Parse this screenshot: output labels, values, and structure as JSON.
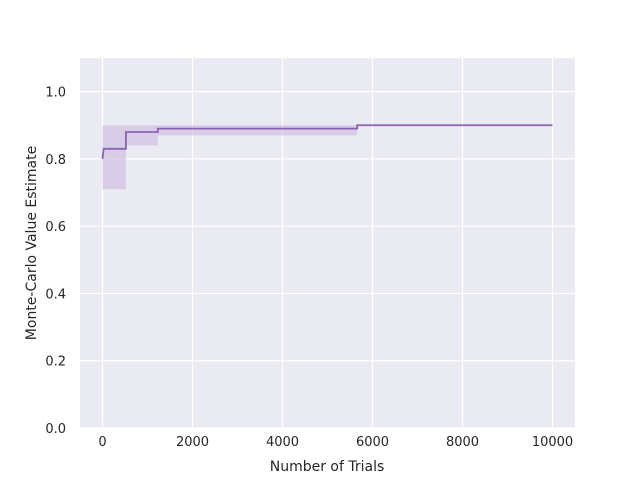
{
  "chart_data": {
    "type": "line",
    "title": "",
    "xlabel": "Number of Trials",
    "ylabel": "Monte-Carlo Value Estimate",
    "xlim": [
      -500,
      10500
    ],
    "ylim": [
      0,
      1.1
    ],
    "xticks": [
      0,
      2000,
      4000,
      6000,
      8000,
      10000
    ],
    "xtick_labels": [
      "0",
      "2000",
      "4000",
      "6000",
      "8000",
      "10000"
    ],
    "yticks": [
      0.0,
      0.2,
      0.4,
      0.6,
      0.8,
      1.0
    ],
    "ytick_labels": [
      "0.0",
      "0.2",
      "0.4",
      "0.6",
      "0.8",
      "1.0"
    ],
    "grid": true,
    "legend": "none",
    "colors": {
      "background": "#eaeaf2",
      "grid": "#ffffff",
      "line": "#8c62b4",
      "band": "#c9b3dc"
    },
    "series": [
      {
        "x": [
          0,
          25,
          25,
          520,
          520,
          1230,
          1230,
          5660,
          5660,
          10000
        ],
        "y": [
          0.8,
          0.83,
          0.83,
          0.83,
          0.88,
          0.88,
          0.89,
          0.89,
          0.9,
          0.9
        ],
        "band_lower": [
          0.71,
          0.71,
          0.71,
          0.71,
          0.84,
          0.84,
          0.87,
          0.87,
          0.9,
          0.9
        ],
        "band_upper": [
          0.9,
          0.9,
          0.9,
          0.9,
          0.9,
          0.9,
          0.9,
          0.9,
          0.9,
          0.9
        ]
      }
    ]
  }
}
